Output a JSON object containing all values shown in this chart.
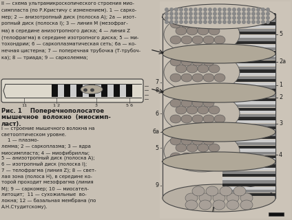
{
  "bg_color": "#d4cfc8",
  "top_text_lines": [
    "II — схема ультрамикроскопического строения мио-",
    "симпласта (по Р.Кристичу с изменением). 1 — сарко-",
    "мер; 2 — анизотропный диск (полоска A); 2a — изот-",
    "ропный диск (полоска I); 3 — линия M (мезофраг-",
    "ма) в середине анизотропного диска; 4 — линия Z",
    "(телофрагма) в середине изотропного диска; 5 — ми-",
    "тохондрии; 6 — саркоплазматическая сеть; 6a — ко-",
    "нечная цистерна; 7 — поперечная трубочка (Т-трубоч-",
    "ка); 8 — триада; 9 — сарколемма;"
  ],
  "fig_caption_lines": [
    "Рис. 1    Поперечнополосатое",
    "мышечное  волокно  (миосимп-",
    "ласт)."
  ],
  "description_lines": [
    "I — строение мышечного волокна на",
    "светооптическом уровне.",
    "    1 — плазмо-",
    "лемма; 2 — саркоплазма; 3 — ядра",
    "миосимпласта; 4 — миофибриллы;",
    "5 — анизотропный диск (полоска A);",
    "6 — изотропный диск (полоска I);",
    "7 — телофрагма (линия Z); 8 — свет-",
    "лая зона (полоса H), в середине ко-",
    "торой проходит мезофрагма (линия",
    "M); 9 — саркомер; 10 — миосател-",
    "литоцит;  11 — сухожильные  во-",
    "локна; 12 — базальная мембрана (по",
    "А.Н.Студитскому)."
  ],
  "text_color": "#1a1a1a",
  "diagram_bg": "#c8c0b4",
  "sarcomere_labels": [
    "11",
    "1 2",
    "3",
    "5 6"
  ]
}
